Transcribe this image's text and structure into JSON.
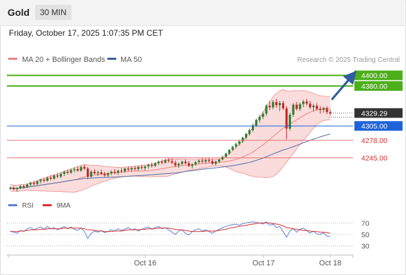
{
  "header": {
    "symbol": "Gold",
    "timeframe": "30 MIN",
    "datetime": "Friday, October 17, 2025 1:07:35 PM CET"
  },
  "legend": {
    "ma20_label": "MA 20 + Bollinger Bands",
    "ma50_label": "MA 50",
    "copyright": "Research © 2025 Trading Central"
  },
  "rsi_legend": {
    "rsi_label": "RSI",
    "ma9_label": "9MA"
  },
  "colors": {
    "up": "#2e7d32",
    "down": "#c62828",
    "ma20": "#ef8080",
    "band_fill": "#f9d3d3",
    "ma50": "#4a6fa5",
    "target_green": "#4caf1a",
    "pivot_blue": "#1e63d8",
    "support_red": "#e57373",
    "arrow": "#2f5f9e",
    "rsi_line": "#5b7fd4",
    "rsi_ma": "#d62f2f"
  },
  "chart_data": {
    "type": "candlestick",
    "instrument": "Gold",
    "timeframe": "30 MIN",
    "x_tick_labels": [
      "Oct 16",
      "Oct 17",
      "Oct 18"
    ],
    "ylim": [
      4180,
      4415
    ],
    "levels": [
      {
        "value": 4400.0,
        "label": "4400.00",
        "kind": "target"
      },
      {
        "value": 4380.0,
        "label": "4380.00",
        "kind": "target"
      },
      {
        "value": 4329.29,
        "label": "4329.29",
        "kind": "last"
      },
      {
        "value": 4305.0,
        "label": "4305.00",
        "kind": "pivot"
      },
      {
        "value": 4278.0,
        "label": "4278.00",
        "kind": "support"
      },
      {
        "value": 4245.0,
        "label": "4245.00",
        "kind": "support"
      }
    ],
    "candles": [
      [
        4187,
        4191,
        4185,
        4189
      ],
      [
        4189,
        4192,
        4184,
        4186
      ],
      [
        4186,
        4190,
        4182,
        4188
      ],
      [
        4188,
        4194,
        4186,
        4192
      ],
      [
        4192,
        4195,
        4187,
        4190
      ],
      [
        4190,
        4197,
        4188,
        4195
      ],
      [
        4195,
        4200,
        4191,
        4198
      ],
      [
        4198,
        4202,
        4193,
        4196
      ],
      [
        4196,
        4203,
        4194,
        4201
      ],
      [
        4201,
        4206,
        4197,
        4204
      ],
      [
        4204,
        4208,
        4199,
        4202
      ],
      [
        4202,
        4210,
        4200,
        4208
      ],
      [
        4208,
        4213,
        4203,
        4206
      ],
      [
        4206,
        4214,
        4204,
        4212
      ],
      [
        4212,
        4217,
        4207,
        4210
      ],
      [
        4210,
        4218,
        4207,
        4215
      ],
      [
        4215,
        4221,
        4211,
        4219
      ],
      [
        4219,
        4223,
        4214,
        4217
      ],
      [
        4217,
        4225,
        4215,
        4222
      ],
      [
        4222,
        4227,
        4218,
        4224
      ],
      [
        4224,
        4229,
        4219,
        4221
      ],
      [
        4221,
        4230,
        4219,
        4228
      ],
      [
        4228,
        4232,
        4222,
        4225
      ],
      [
        4225,
        4228,
        4205,
        4210
      ],
      [
        4210,
        4222,
        4208,
        4219
      ],
      [
        4219,
        4224,
        4214,
        4216
      ],
      [
        4216,
        4221,
        4211,
        4218
      ],
      [
        4218,
        4223,
        4213,
        4215
      ],
      [
        4215,
        4219,
        4209,
        4212
      ],
      [
        4212,
        4218,
        4208,
        4216
      ],
      [
        4216,
        4222,
        4212,
        4219
      ],
      [
        4219,
        4224,
        4214,
        4217
      ],
      [
        4217,
        4223,
        4213,
        4221
      ],
      [
        4221,
        4226,
        4217,
        4220
      ],
      [
        4220,
        4227,
        4217,
        4225
      ],
      [
        4225,
        4229,
        4220,
        4223
      ],
      [
        4223,
        4228,
        4219,
        4226
      ],
      [
        4226,
        4230,
        4221,
        4224
      ],
      [
        4224,
        4230,
        4221,
        4228
      ],
      [
        4228,
        4232,
        4223,
        4226
      ],
      [
        4226,
        4231,
        4222,
        4229
      ],
      [
        4229,
        4234,
        4225,
        4232
      ],
      [
        4232,
        4236,
        4227,
        4230
      ],
      [
        4230,
        4237,
        4228,
        4235
      ],
      [
        4235,
        4240,
        4231,
        4238
      ],
      [
        4238,
        4242,
        4233,
        4236
      ],
      [
        4236,
        4243,
        4234,
        4241
      ],
      [
        4241,
        4245,
        4236,
        4239
      ],
      [
        4239,
        4244,
        4233,
        4236
      ],
      [
        4236,
        4240,
        4228,
        4231
      ],
      [
        4231,
        4236,
        4226,
        4234
      ],
      [
        4234,
        4240,
        4231,
        4238
      ],
      [
        4238,
        4242,
        4233,
        4235
      ],
      [
        4235,
        4239,
        4228,
        4230
      ],
      [
        4230,
        4235,
        4225,
        4233
      ],
      [
        4233,
        4239,
        4230,
        4237
      ],
      [
        4237,
        4242,
        4234,
        4240
      ],
      [
        4240,
        4244,
        4235,
        4238
      ],
      [
        4238,
        4243,
        4234,
        4241
      ],
      [
        4241,
        4245,
        4236,
        4239
      ],
      [
        4239,
        4243,
        4232,
        4234
      ],
      [
        4234,
        4240,
        4231,
        4238
      ],
      [
        4238,
        4243,
        4235,
        4242
      ],
      [
        4242,
        4249,
        4240,
        4247
      ],
      [
        4247,
        4255,
        4245,
        4253
      ],
      [
        4253,
        4262,
        4251,
        4260
      ],
      [
        4260,
        4268,
        4258,
        4266
      ],
      [
        4266,
        4274,
        4263,
        4271
      ],
      [
        4271,
        4279,
        4268,
        4276
      ],
      [
        4276,
        4285,
        4273,
        4283
      ],
      [
        4283,
        4292,
        4280,
        4290
      ],
      [
        4290,
        4300,
        4287,
        4297
      ],
      [
        4297,
        4310,
        4294,
        4306
      ],
      [
        4306,
        4319,
        4303,
        4316
      ],
      [
        4316,
        4326,
        4311,
        4322
      ],
      [
        4322,
        4332,
        4318,
        4328
      ],
      [
        4328,
        4346,
        4324,
        4343
      ],
      [
        4343,
        4352,
        4335,
        4340
      ],
      [
        4340,
        4354,
        4336,
        4350
      ],
      [
        4350,
        4356,
        4339,
        4344
      ],
      [
        4344,
        4352,
        4333,
        4348
      ],
      [
        4348,
        4352,
        4335,
        4338
      ],
      [
        4338,
        4342,
        4280,
        4300
      ],
      [
        4300,
        4330,
        4296,
        4326
      ],
      [
        4326,
        4348,
        4322,
        4345
      ],
      [
        4345,
        4350,
        4334,
        4337
      ],
      [
        4337,
        4349,
        4333,
        4346
      ],
      [
        4346,
        4354,
        4340,
        4351
      ],
      [
        4351,
        4356,
        4343,
        4347
      ],
      [
        4347,
        4352,
        4337,
        4340
      ],
      [
        4340,
        4346,
        4332,
        4343
      ],
      [
        4343,
        4348,
        4334,
        4337
      ],
      [
        4337,
        4342,
        4328,
        4335
      ],
      [
        4335,
        4341,
        4330,
        4338
      ],
      [
        4338,
        4342,
        4327,
        4331
      ],
      [
        4331,
        4336,
        4325,
        4329
      ]
    ],
    "rsi": {
      "levels": [
        70,
        50,
        30
      ],
      "ylim": [
        20,
        80
      ],
      "rsi_values": [
        56,
        54,
        52,
        57,
        55,
        60,
        62,
        58,
        61,
        63,
        59,
        64,
        60,
        62,
        58,
        61,
        64,
        60,
        63,
        59,
        57,
        61,
        55,
        43,
        52,
        56,
        54,
        57,
        53,
        55,
        58,
        56,
        60,
        57,
        59,
        62,
        58,
        60,
        56,
        59,
        61,
        63,
        59,
        62,
        64,
        60,
        62,
        58,
        54,
        50,
        56,
        58,
        52,
        49,
        55,
        58,
        60,
        56,
        58,
        55,
        52,
        56,
        59,
        62,
        64,
        66,
        67,
        68,
        66,
        69,
        70,
        71,
        72,
        71,
        70,
        68,
        72,
        66,
        68,
        62,
        64,
        55,
        45,
        56,
        60,
        54,
        59,
        61,
        57,
        52,
        56,
        51,
        50,
        53,
        47,
        46
      ],
      "ma9_values": [
        55,
        55,
        55,
        56,
        56,
        57,
        58,
        58,
        58,
        59,
        59,
        60,
        60,
        60,
        60,
        60,
        61,
        61,
        61,
        61,
        61,
        61,
        60,
        58,
        58,
        57,
        56,
        56,
        55,
        55,
        55,
        56,
        56,
        56,
        57,
        58,
        58,
        58,
        58,
        59,
        59,
        60,
        60,
        60,
        61,
        61,
        61,
        61,
        60,
        59,
        58,
        58,
        57,
        56,
        55,
        55,
        55,
        55,
        56,
        56,
        56,
        56,
        57,
        58,
        59,
        61,
        62,
        63,
        64,
        65,
        66,
        67,
        68,
        69,
        70,
        70,
        70,
        70,
        69,
        68,
        67,
        65,
        62,
        61,
        60,
        59,
        58,
        57,
        57,
        56,
        55,
        55,
        54,
        54,
        53,
        52
      ]
    }
  }
}
